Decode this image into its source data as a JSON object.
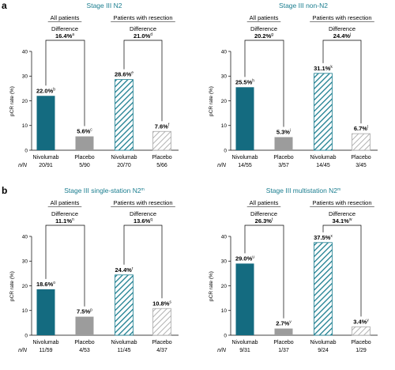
{
  "colors": {
    "teal": "#146b80",
    "grey": "#9c9c9c",
    "teal_hatch": "#1a7d8f",
    "grey_hatch": "#a8a8a8",
    "subtitle": "#1a7d8f"
  },
  "panel_letters": [
    "a",
    "b"
  ],
  "nn_label": "n/N",
  "chart_data": [
    {
      "type": "bar",
      "panel": "a",
      "subtitle": "Stage III N2",
      "ylabel": "pCR rate (%)",
      "ylim": [
        0,
        40
      ],
      "yticks": [
        0,
        10,
        20,
        30,
        40
      ],
      "groups": [
        {
          "name": "All patients",
          "difference_label": "Difference",
          "difference": "16.4%",
          "difference_sup": "a"
        },
        {
          "name": "Patients with resection",
          "difference_label": "Difference",
          "difference": "21.0%",
          "difference_sup": "d"
        }
      ],
      "bars": [
        {
          "category": "Nivolumab",
          "group": 0,
          "style": "solid-teal",
          "value": 22.0,
          "label": "22.0%",
          "sup": "b",
          "n_of_N": "20/91"
        },
        {
          "category": "Placebo",
          "group": 0,
          "style": "solid-grey",
          "value": 5.6,
          "label": "5.6%",
          "sup": "c",
          "n_of_N": "5/90"
        },
        {
          "category": "Nivolumab",
          "group": 1,
          "style": "hatch-teal",
          "value": 28.6,
          "label": "28.6%",
          "sup": "e",
          "n_of_N": "20/70"
        },
        {
          "category": "Placebo",
          "group": 1,
          "style": "hatch-grey",
          "value": 7.6,
          "label": "7.6%",
          "sup": "f",
          "n_of_N": "5/66"
        }
      ]
    },
    {
      "type": "bar",
      "panel": "",
      "subtitle": "Stage III non-N2",
      "ylabel": "pCR rate (%)",
      "ylim": [
        0,
        40
      ],
      "yticks": [
        0,
        10,
        20,
        30,
        40
      ],
      "groups": [
        {
          "name": "All patients",
          "difference_label": "Difference",
          "difference": "20.2%",
          "difference_sup": "g"
        },
        {
          "name": "Patients with resection",
          "difference_label": "Difference",
          "difference": "24.4%",
          "difference_sup": "j"
        }
      ],
      "bars": [
        {
          "category": "Nivolumab",
          "group": 0,
          "style": "solid-teal",
          "value": 25.5,
          "label": "25.5%",
          "sup": "h",
          "n_of_N": "14/55"
        },
        {
          "category": "Placebo",
          "group": 0,
          "style": "solid-grey",
          "value": 5.3,
          "label": "5.3%",
          "sup": "i",
          "n_of_N": "3/57"
        },
        {
          "category": "Nivolumab",
          "group": 1,
          "style": "hatch-teal",
          "value": 31.1,
          "label": "31.1%",
          "sup": "k",
          "n_of_N": "14/45"
        },
        {
          "category": "Placebo",
          "group": 1,
          "style": "hatch-grey",
          "value": 6.7,
          "label": "6.7%",
          "sup": "l",
          "n_of_N": "3/45"
        }
      ]
    },
    {
      "type": "bar",
      "panel": "b",
      "subtitle": "Stage III single-station N2",
      "subtitle_sup": "m",
      "ylabel": "pCR rate (%)",
      "ylim": [
        0,
        40
      ],
      "yticks": [
        0,
        10,
        20,
        30,
        40
      ],
      "groups": [
        {
          "name": "All patients",
          "difference_label": "Difference",
          "difference": "11.1%",
          "difference_sup": "n"
        },
        {
          "name": "Patients with resection",
          "difference_label": "Difference",
          "difference": "13.6%",
          "difference_sup": "q"
        }
      ],
      "bars": [
        {
          "category": "Nivolumab",
          "group": 0,
          "style": "solid-teal",
          "value": 18.6,
          "label": "18.6%",
          "sup": "o",
          "n_of_N": "11/59"
        },
        {
          "category": "Placebo",
          "group": 0,
          "style": "solid-grey",
          "value": 7.5,
          "label": "7.5%",
          "sup": "p",
          "n_of_N": "4/53"
        },
        {
          "category": "Nivolumab",
          "group": 1,
          "style": "hatch-teal",
          "value": 24.4,
          "label": "24.4%",
          "sup": "r",
          "n_of_N": "11/45"
        },
        {
          "category": "Placebo",
          "group": 1,
          "style": "hatch-grey",
          "value": 10.8,
          "label": "10.8%",
          "sup": "s",
          "n_of_N": "4/37"
        }
      ]
    },
    {
      "type": "bar",
      "panel": "",
      "subtitle": "Stage III multistation N2",
      "subtitle_sup": "m",
      "ylabel": "pCR rate (%)",
      "ylim": [
        0,
        40
      ],
      "yticks": [
        0,
        10,
        20,
        30,
        40
      ],
      "groups": [
        {
          "name": "All patients",
          "difference_label": "Difference",
          "difference": "26.3%",
          "difference_sup": "t"
        },
        {
          "name": "Patients with resection",
          "difference_label": "Difference",
          "difference": "34.1%",
          "difference_sup": "w"
        }
      ],
      "bars": [
        {
          "category": "Nivolumab",
          "group": 0,
          "style": "solid-teal",
          "value": 29.0,
          "label": "29.0%",
          "sup": "u",
          "n_of_N": "9/31"
        },
        {
          "category": "Placebo",
          "group": 0,
          "style": "solid-grey",
          "value": 2.7,
          "label": "2.7%",
          "sup": "v",
          "n_of_N": "1/37"
        },
        {
          "category": "Nivolumab",
          "group": 1,
          "style": "hatch-teal",
          "value": 37.5,
          "label": "37.5%",
          "sup": "x",
          "n_of_N": "9/24"
        },
        {
          "category": "Placebo",
          "group": 1,
          "style": "hatch-grey",
          "value": 3.4,
          "label": "3.4%",
          "sup": "y",
          "n_of_N": "1/29"
        }
      ]
    }
  ]
}
